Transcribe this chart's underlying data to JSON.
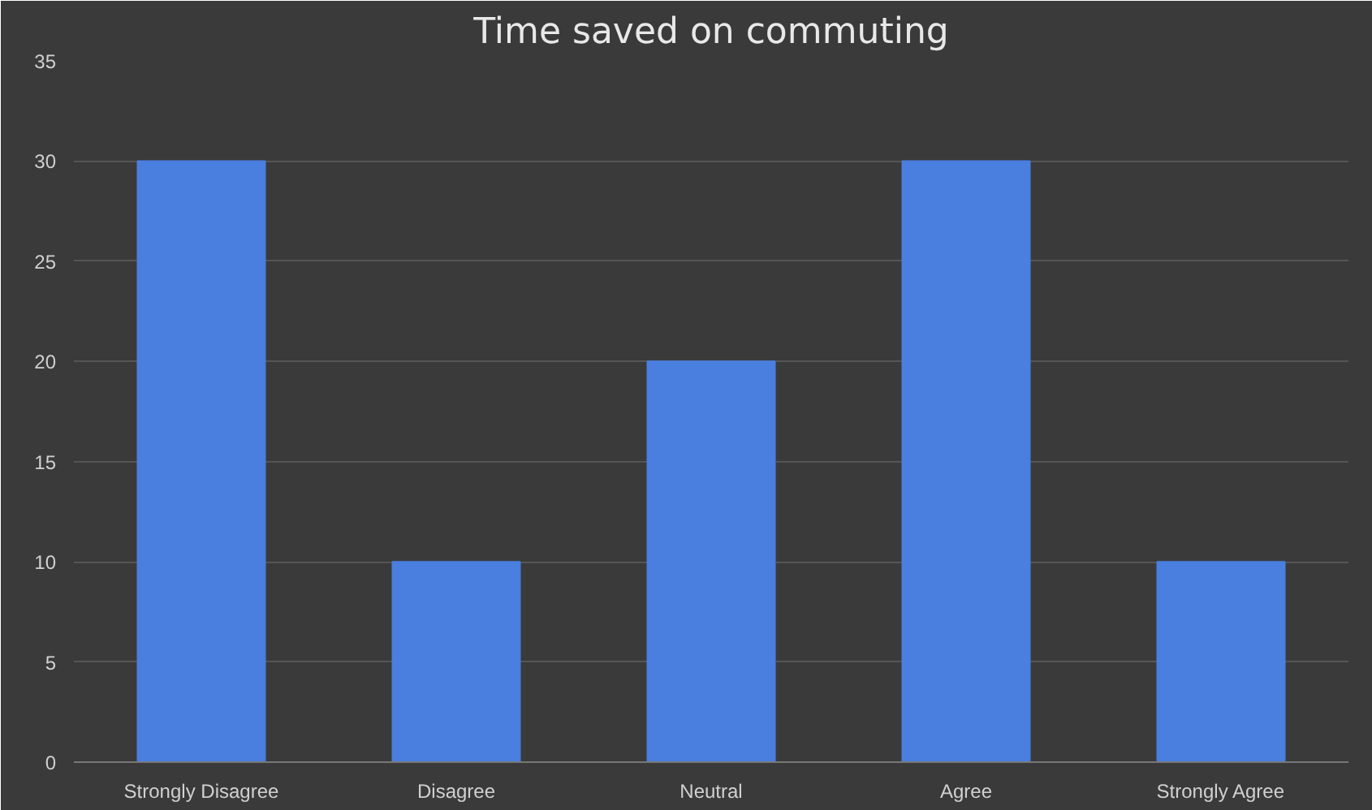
{
  "chart_data": {
    "type": "bar",
    "title": "Time saved on commuting",
    "categories": [
      "Strongly Disagree",
      "Disagree",
      "Neutral",
      "Agree",
      "Strongly Agree"
    ],
    "values": [
      30,
      10,
      20,
      30,
      10
    ],
    "color": "#4a7fe0",
    "ylim": [
      0,
      35
    ],
    "yticks": [
      0,
      5,
      10,
      15,
      20,
      25,
      30,
      35
    ],
    "grid": "y"
  }
}
